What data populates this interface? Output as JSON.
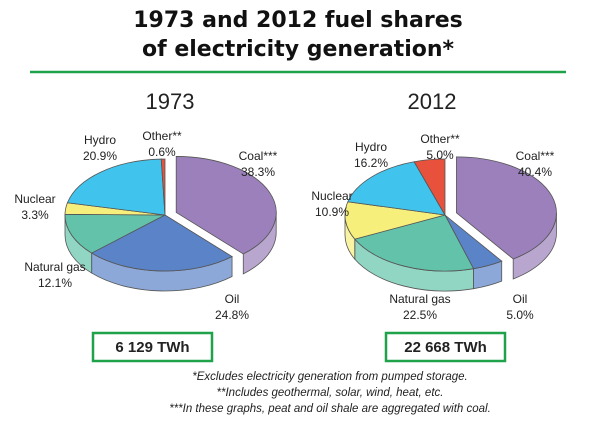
{
  "title": "1973 and 2012 fuel shares of electricity generation*",
  "footnotes": [
    "*Excludes electricity generation from pumped storage.",
    "**Includes geothermal, solar, wind, heat, etc.",
    "***In these graphs, peat and oil shale are aggregated with coal."
  ],
  "chart_data": [
    {
      "type": "pie",
      "title": "1973",
      "categories": [
        "Coal***",
        "Oil",
        "Natural gas",
        "Nuclear",
        "Hydro",
        "Other**"
      ],
      "values": [
        38.3,
        24.8,
        12.1,
        3.3,
        20.9,
        0.6
      ],
      "value_labels": [
        "38.3%",
        "24.8%",
        "12.1%",
        "3.3%",
        "20.9%",
        "0.6%"
      ],
      "colors": [
        "#9b80bb",
        "#5a83c8",
        "#63c3aa",
        "#f6ef7c",
        "#40c4ee",
        "#e8513b"
      ],
      "exploded": [
        true,
        false,
        false,
        false,
        false,
        false
      ],
      "total_label": "6 129 TWh"
    },
    {
      "type": "pie",
      "title": "2012",
      "categories": [
        "Coal***",
        "Oil",
        "Natural gas",
        "Nuclear",
        "Hydro",
        "Other**"
      ],
      "values": [
        40.4,
        5.0,
        22.5,
        10.9,
        16.2,
        5.0
      ],
      "value_labels": [
        "40.4%",
        "5.0%",
        "22.5%",
        "10.9%",
        "16.2%",
        "5.0%"
      ],
      "colors": [
        "#9b80bb",
        "#5a83c8",
        "#63c3aa",
        "#f6ef7c",
        "#40c4ee",
        "#e8513b"
      ],
      "exploded": [
        true,
        false,
        false,
        false,
        false,
        false
      ],
      "total_label": "22 668 TWh"
    }
  ]
}
